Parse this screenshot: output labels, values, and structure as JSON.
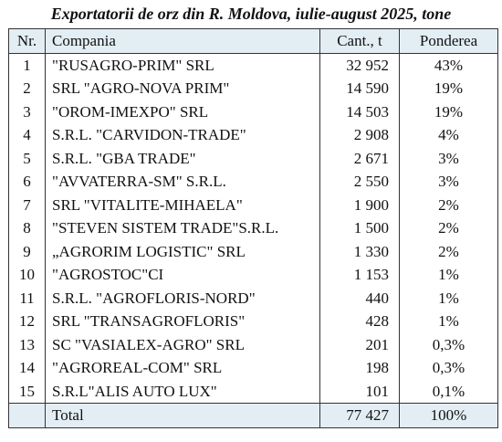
{
  "title": "Exportatorii de orz din R. Moldova, iulie-august 2025, tone",
  "headers": {
    "nr": "Nr.",
    "company": "Compania",
    "quantity": "Cant., t",
    "share": "Ponderea"
  },
  "rows": [
    {
      "nr": "1",
      "company": "\"RUSAGRO-PRIM\" SRL",
      "quantity": "32 952",
      "share": "43%"
    },
    {
      "nr": "2",
      "company": "SRL \"AGRO-NOVA PRIM\"",
      "quantity": "14 590",
      "share": "19%"
    },
    {
      "nr": "3",
      "company": "\"OROM-IMEXPO\" SRL",
      "quantity": "14 503",
      "share": "19%"
    },
    {
      "nr": "4",
      "company": "S.R.L. \"CARVIDON-TRADE\"",
      "quantity": "2 908",
      "share": "4%"
    },
    {
      "nr": "5",
      "company": "S.R.L. \"GBA TRADE\"",
      "quantity": "2 671",
      "share": "3%"
    },
    {
      "nr": "6",
      "company": "\"AVVATERRA-SM\" S.R.L.",
      "quantity": "2 550",
      "share": "3%"
    },
    {
      "nr": "7",
      "company": "SRL \"VITALITE-MIHAELA\"",
      "quantity": "1 900",
      "share": "2%"
    },
    {
      "nr": "8",
      "company": "\"STEVEN SISTEM TRADE\"S.R.L.",
      "quantity": "1 500",
      "share": "2%"
    },
    {
      "nr": "9",
      "company": "„AGRORIM LOGISTIC\" SRL",
      "quantity": "1 330",
      "share": "2%"
    },
    {
      "nr": "10",
      "company": "\"AGROSTOC\"CI",
      "quantity": "1 153",
      "share": "1%"
    },
    {
      "nr": "11",
      "company": "S.R.L. \"AGROFLORIS-NORD\"",
      "quantity": "440",
      "share": "1%"
    },
    {
      "nr": "12",
      "company": "SRL \"TRANSAGROFLORIS\"",
      "quantity": "428",
      "share": "1%"
    },
    {
      "nr": "13",
      "company": "SC \"VASIALEX-AGRO\" SRL",
      "quantity": "201",
      "share": "0,3%"
    },
    {
      "nr": "14",
      "company": "\"AGROREAL-COM\" SRL",
      "quantity": "198",
      "share": "0,3%"
    },
    {
      "nr": "15",
      "company": "S.R.L\"ALIS AUTO LUX\"",
      "quantity": "101",
      "share": "0,1%"
    }
  ],
  "total": {
    "label": "Total",
    "quantity": "77 427",
    "share": "100%"
  }
}
